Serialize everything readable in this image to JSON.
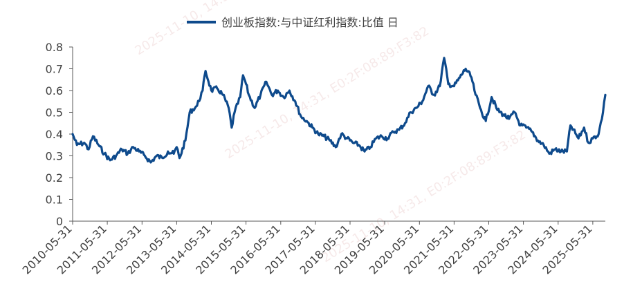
{
  "chart_data": {
    "type": "line",
    "title": "",
    "xlabel": "",
    "ylabel": "",
    "legend": {
      "position": "top-center"
    },
    "ylim": [
      0,
      0.8
    ],
    "y_ticks": [
      "0",
      "0.1",
      "0.2",
      "0.3",
      "0.4",
      "0.5",
      "0.6",
      "0.7",
      "0.8"
    ],
    "x_ticks": [
      "2010-05-31",
      "2011-05-31",
      "2012-05-31",
      "2013-05-31",
      "2014-05-31",
      "2015-05-31",
      "2016-05-31",
      "2017-05-31",
      "2018-05-31",
      "2019-05-31",
      "2020-05-31",
      "2021-05-31",
      "2022-05-31",
      "2023-05-31",
      "2024-05-31",
      "2025-05-31"
    ],
    "grid": false,
    "series": [
      {
        "name": "创业板指数:与中证红利指数:比值 日",
        "color": "#0e4a8c",
        "points": [
          [
            "2010-05-31",
            0.4
          ],
          [
            "2010-07-15",
            0.35
          ],
          [
            "2010-09-30",
            0.36
          ],
          [
            "2010-11-15",
            0.33
          ],
          [
            "2010-12-31",
            0.39
          ],
          [
            "2011-02-28",
            0.35
          ],
          [
            "2011-04-30",
            0.31
          ],
          [
            "2011-06-30",
            0.28
          ],
          [
            "2011-08-31",
            0.3
          ],
          [
            "2011-10-31",
            0.33
          ],
          [
            "2011-12-31",
            0.31
          ],
          [
            "2012-02-28",
            0.34
          ],
          [
            "2012-04-30",
            0.32
          ],
          [
            "2012-06-30",
            0.3
          ],
          [
            "2012-08-31",
            0.27
          ],
          [
            "2012-10-31",
            0.3
          ],
          [
            "2012-12-31",
            0.29
          ],
          [
            "2013-02-28",
            0.32
          ],
          [
            "2013-04-30",
            0.31
          ],
          [
            "2013-05-31",
            0.34
          ],
          [
            "2013-06-30",
            0.29
          ],
          [
            "2013-08-31",
            0.37
          ],
          [
            "2013-10-15",
            0.5
          ],
          [
            "2013-12-31",
            0.53
          ],
          [
            "2014-02-28",
            0.6
          ],
          [
            "2014-03-31",
            0.69
          ],
          [
            "2014-05-31",
            0.6
          ],
          [
            "2014-07-31",
            0.61
          ],
          [
            "2014-09-30",
            0.58
          ],
          [
            "2014-11-30",
            0.52
          ],
          [
            "2014-12-31",
            0.43
          ],
          [
            "2015-01-31",
            0.5
          ],
          [
            "2015-03-31",
            0.57
          ],
          [
            "2015-04-30",
            0.67
          ],
          [
            "2015-05-31",
            0.63
          ],
          [
            "2015-06-30",
            0.58
          ],
          [
            "2015-08-31",
            0.52
          ],
          [
            "2015-10-31",
            0.58
          ],
          [
            "2015-12-31",
            0.64
          ],
          [
            "2016-02-28",
            0.58
          ],
          [
            "2016-04-30",
            0.6
          ],
          [
            "2016-06-30",
            0.57
          ],
          [
            "2016-08-31",
            0.6
          ],
          [
            "2016-10-31",
            0.55
          ],
          [
            "2016-12-31",
            0.48
          ],
          [
            "2017-02-28",
            0.46
          ],
          [
            "2017-04-30",
            0.43
          ],
          [
            "2017-06-30",
            0.4
          ],
          [
            "2017-08-31",
            0.39
          ],
          [
            "2017-10-31",
            0.37
          ],
          [
            "2017-12-31",
            0.34
          ],
          [
            "2018-02-28",
            0.4
          ],
          [
            "2018-04-30",
            0.38
          ],
          [
            "2018-06-30",
            0.36
          ],
          [
            "2018-08-31",
            0.35
          ],
          [
            "2018-10-31",
            0.32
          ],
          [
            "2018-12-31",
            0.34
          ],
          [
            "2019-02-28",
            0.38
          ],
          [
            "2019-04-30",
            0.39
          ],
          [
            "2019-06-30",
            0.38
          ],
          [
            "2019-08-31",
            0.41
          ],
          [
            "2019-10-31",
            0.42
          ],
          [
            "2019-12-31",
            0.45
          ],
          [
            "2020-02-28",
            0.5
          ],
          [
            "2020-04-30",
            0.52
          ],
          [
            "2020-06-30",
            0.55
          ],
          [
            "2020-08-31",
            0.62
          ],
          [
            "2020-10-31",
            0.58
          ],
          [
            "2020-12-31",
            0.62
          ],
          [
            "2021-02-15",
            0.75
          ],
          [
            "2021-03-31",
            0.63
          ],
          [
            "2021-05-31",
            0.62
          ],
          [
            "2021-07-31",
            0.66
          ],
          [
            "2021-09-30",
            0.7
          ],
          [
            "2021-11-30",
            0.66
          ],
          [
            "2021-12-31",
            0.6
          ],
          [
            "2022-02-28",
            0.52
          ],
          [
            "2022-04-30",
            0.46
          ],
          [
            "2022-06-30",
            0.57
          ],
          [
            "2022-08-31",
            0.51
          ],
          [
            "2022-10-31",
            0.49
          ],
          [
            "2022-12-31",
            0.47
          ],
          [
            "2023-02-28",
            0.5
          ],
          [
            "2023-04-30",
            0.44
          ],
          [
            "2023-06-30",
            0.43
          ],
          [
            "2023-08-31",
            0.41
          ],
          [
            "2023-10-31",
            0.37
          ],
          [
            "2023-12-31",
            0.35
          ],
          [
            "2024-02-28",
            0.31
          ],
          [
            "2024-04-30",
            0.33
          ],
          [
            "2024-06-30",
            0.32
          ],
          [
            "2024-08-31",
            0.32
          ],
          [
            "2024-10-08",
            0.44
          ],
          [
            "2024-12-31",
            0.38
          ],
          [
            "2025-02-28",
            0.43
          ],
          [
            "2025-04-15",
            0.36
          ],
          [
            "2025-05-31",
            0.38
          ],
          [
            "2025-07-31",
            0.4
          ],
          [
            "2025-09-15",
            0.5
          ],
          [
            "2025-10-10",
            0.58
          ]
        ]
      }
    ]
  },
  "watermarks": [
    "2025-11-10, 14:31, E0:2F:08:89:F3:82",
    "2025-11-10, 14:31, E0:2F:08:89:F3:82",
    "2025-11-10, 14:31, E0:2F:08:89:F3:82"
  ]
}
